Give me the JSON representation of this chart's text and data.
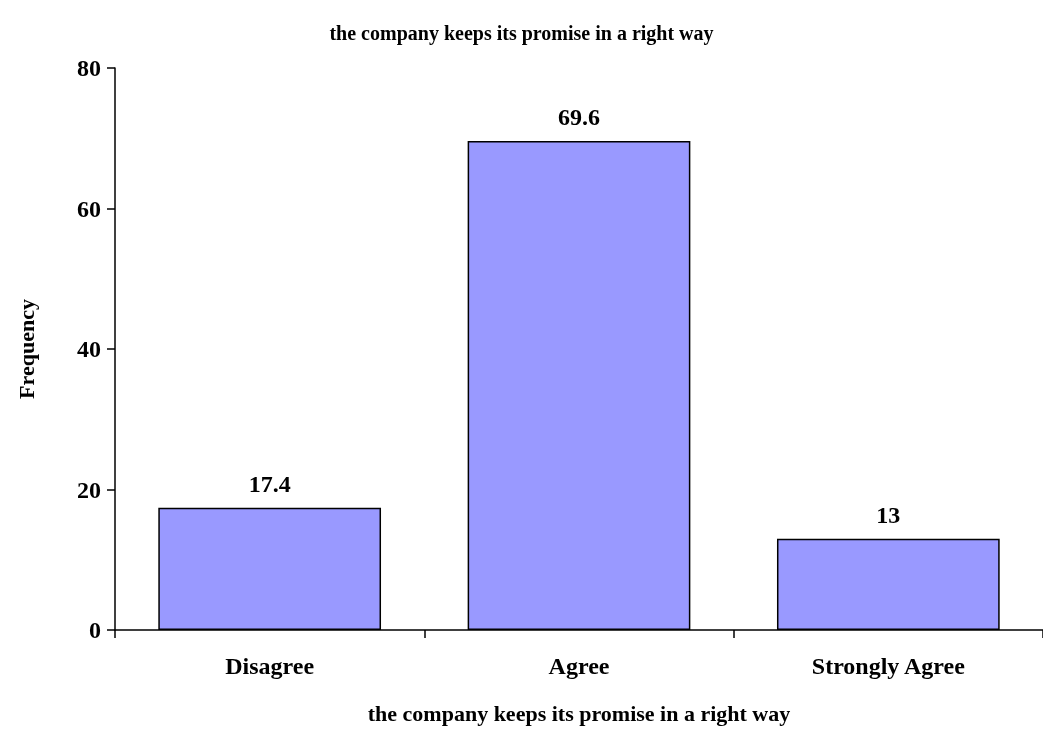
{
  "chart_data": {
    "type": "bar",
    "title": "the company keeps its promise in a right way",
    "xlabel": "the company keeps its promise in a right way",
    "ylabel": "Frequency",
    "categories": [
      "Disagree",
      "Agree",
      "Strongly Agree"
    ],
    "values": [
      17.4,
      69.6,
      13
    ],
    "color": "#9999ff",
    "ylim": [
      0,
      80
    ],
    "yticks": [
      0,
      20,
      40,
      60,
      80
    ],
    "grid": false,
    "data_labels": true
  }
}
